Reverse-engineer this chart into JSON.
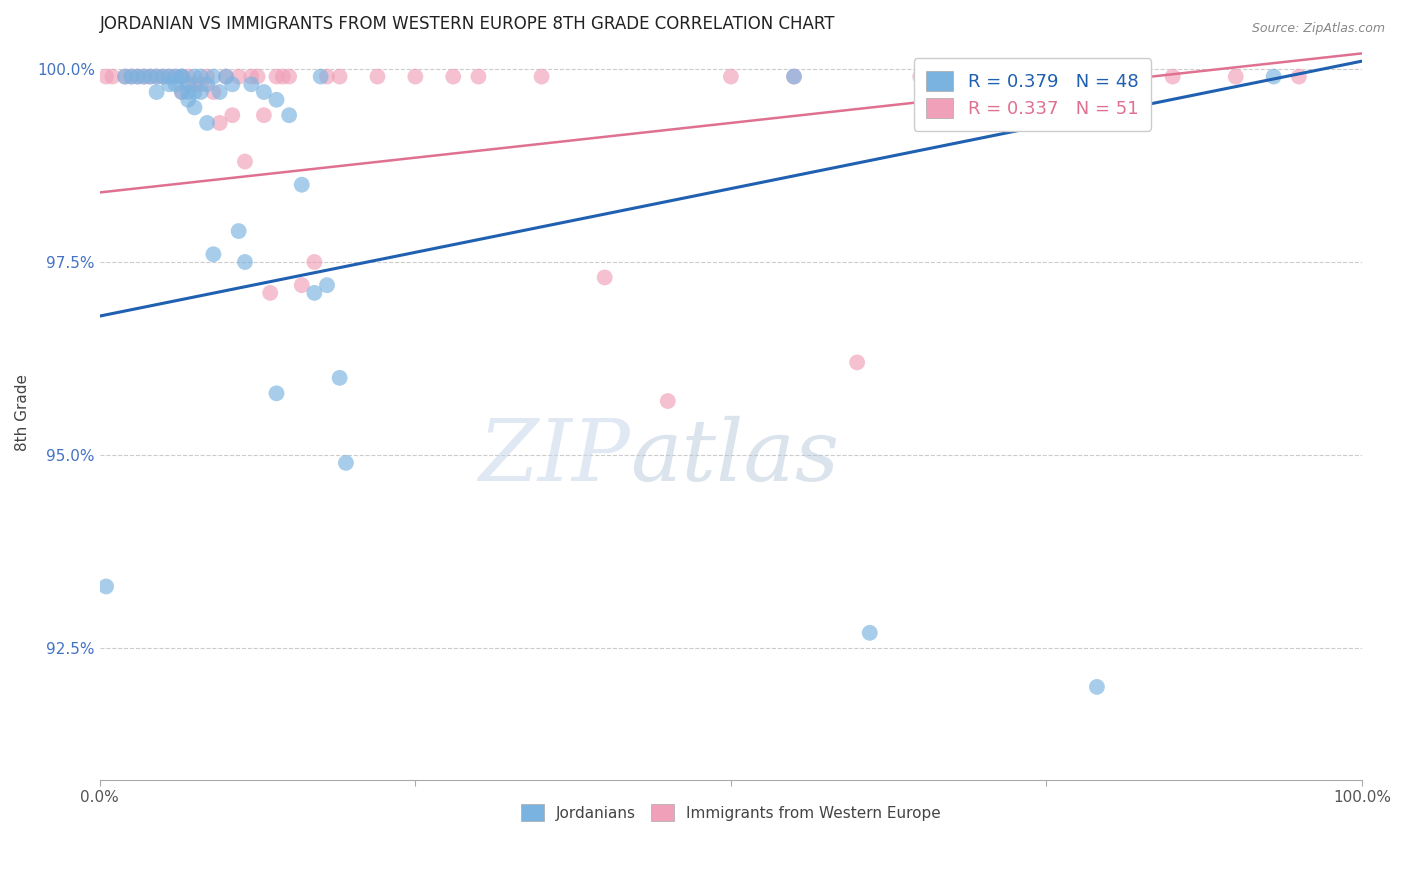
{
  "title": "JORDANIAN VS IMMIGRANTS FROM WESTERN EUROPE 8TH GRADE CORRELATION CHART",
  "source_text": "Source: ZipAtlas.com",
  "ylabel": "8th Grade",
  "x_min": 0.0,
  "x_max": 1.0,
  "y_min": 0.908,
  "y_max": 1.003,
  "y_ticks": [
    0.925,
    0.95,
    0.975,
    1.0
  ],
  "y_tick_labels": [
    "92.5%",
    "95.0%",
    "97.5%",
    "100.0%"
  ],
  "x_ticks": [
    0.0,
    0.25,
    0.5,
    0.75,
    1.0
  ],
  "x_tick_labels": [
    "0.0%",
    "",
    "",
    "",
    "100.0%"
  ],
  "blue_label": "Jordanians",
  "pink_label": "Immigrants from Western Europe",
  "blue_R": 0.379,
  "blue_N": 48,
  "pink_R": 0.337,
  "pink_N": 51,
  "blue_color": "#7ab3e0",
  "pink_color": "#f0a0b8",
  "blue_line_color": "#2060b0",
  "pink_line_color": "#e07090",
  "watermark_zip": "ZIP",
  "watermark_atlas": "atlas",
  "blue_trend_x0": 0.0,
  "blue_trend_y0": 0.968,
  "blue_trend_x1": 1.0,
  "blue_trend_y1": 1.001,
  "pink_trend_x0": 0.0,
  "pink_trend_y0": 0.984,
  "pink_trend_x1": 1.0,
  "pink_trend_y1": 1.002,
  "blue_x": [
    0.005,
    0.04,
    0.045,
    0.05,
    0.055,
    0.06,
    0.06,
    0.065,
    0.065,
    0.07,
    0.07,
    0.07,
    0.075,
    0.075,
    0.075,
    0.08,
    0.08,
    0.085,
    0.085,
    0.09,
    0.09,
    0.095,
    0.1,
    0.105,
    0.11,
    0.115,
    0.12,
    0.13,
    0.14,
    0.15,
    0.16,
    0.175,
    0.18,
    0.19,
    0.195,
    0.02,
    0.025,
    0.03,
    0.035,
    0.055,
    0.045,
    0.065,
    0.14,
    0.17,
    0.55,
    0.61,
    0.79,
    0.93
  ],
  "blue_y": [
    0.933,
    0.999,
    0.997,
    0.999,
    0.998,
    0.999,
    0.998,
    0.999,
    0.997,
    0.998,
    0.997,
    0.996,
    0.999,
    0.997,
    0.995,
    0.999,
    0.997,
    0.998,
    0.993,
    0.999,
    0.976,
    0.997,
    0.999,
    0.998,
    0.979,
    0.975,
    0.998,
    0.997,
    0.996,
    0.994,
    0.985,
    0.999,
    0.972,
    0.96,
    0.949,
    0.999,
    0.999,
    0.999,
    0.999,
    0.999,
    0.999,
    0.999,
    0.958,
    0.971,
    0.999,
    0.927,
    0.92,
    0.999
  ],
  "pink_x": [
    0.005,
    0.01,
    0.02,
    0.025,
    0.03,
    0.035,
    0.04,
    0.045,
    0.05,
    0.055,
    0.06,
    0.065,
    0.065,
    0.07,
    0.075,
    0.08,
    0.085,
    0.09,
    0.095,
    0.1,
    0.105,
    0.11,
    0.115,
    0.12,
    0.125,
    0.13,
    0.135,
    0.14,
    0.145,
    0.15,
    0.16,
    0.17,
    0.18,
    0.19,
    0.22,
    0.25,
    0.28,
    0.3,
    0.35,
    0.4,
    0.45,
    0.5,
    0.55,
    0.6,
    0.65,
    0.7,
    0.75,
    0.8,
    0.85,
    0.9,
    0.95
  ],
  "pink_y": [
    0.999,
    0.999,
    0.999,
    0.999,
    0.999,
    0.999,
    0.999,
    0.999,
    0.999,
    0.999,
    0.999,
    0.999,
    0.997,
    0.999,
    0.998,
    0.998,
    0.999,
    0.997,
    0.993,
    0.999,
    0.994,
    0.999,
    0.988,
    0.999,
    0.999,
    0.994,
    0.971,
    0.999,
    0.999,
    0.999,
    0.972,
    0.975,
    0.999,
    0.999,
    0.999,
    0.999,
    0.999,
    0.999,
    0.999,
    0.973,
    0.957,
    0.999,
    0.999,
    0.962,
    0.999,
    0.999,
    0.999,
    0.999,
    0.999,
    0.999,
    0.999
  ]
}
